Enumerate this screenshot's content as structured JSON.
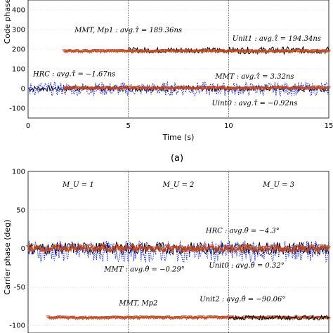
{
  "figure": {
    "subfigure_label": "(a)"
  },
  "chart_data": [
    {
      "type": "line",
      "xlabel": "Time (s)",
      "ylabel": "Code phase",
      "xlim": [
        0,
        15
      ],
      "ylim": [
        -150,
        450
      ],
      "xticks": [
        "0",
        "5",
        "10",
        "15"
      ],
      "yticks": [
        "-100",
        "0",
        "100",
        "200",
        "300",
        "400"
      ],
      "grid": true,
      "vlines": [
        5,
        10
      ],
      "annotations": [
        {
          "text": "MMT, Mp1 : avg.τ̂ = 189.36ns",
          "x": 5.0,
          "y": 285
        },
        {
          "text": "Unit1 : avg.τ̂ = 194.34ns",
          "x": 12.4,
          "y": 243
        },
        {
          "text": "HRC : avg.τ̂ = −1.67ns",
          "x": 2.3,
          "y": 63
        },
        {
          "text": "MMT : avg.τ̂ = 3.32ns",
          "x": 11.3,
          "y": 50
        },
        {
          "text": "Uint0 : avg.τ̂ = −0.92ns",
          "x": 11.3,
          "y": -85
        }
      ],
      "series": [
        {
          "color": "#000000",
          "style": "solid",
          "segments": [
            {
              "x_start": 0,
              "x_end": 5,
              "mean": 0,
              "noise": 15
            },
            {
              "x_start": 5,
              "x_end": 10,
              "mean": 0,
              "noise": 15
            },
            {
              "x_start": 10,
              "x_end": 15,
              "mean": 0,
              "noise": 15
            }
          ]
        },
        {
          "color": "#000000",
          "style": "solid",
          "segments": [
            {
              "x_start": 5,
              "x_end": 10,
              "mean": 195,
              "noise": 14
            },
            {
              "x_start": 10,
              "x_end": 15,
              "mean": 194,
              "noise": 18
            }
          ]
        },
        {
          "color": "#1f2fff",
          "style": "dotted",
          "segments": [
            {
              "x_start": 0,
              "x_end": 15,
              "mean": -2,
              "noise": 35
            }
          ]
        },
        {
          "color": "#c0461c",
          "style": "solid-markers",
          "segments": [
            {
              "x_start": 1.8,
              "x_end": 15,
              "mean": 190,
              "noise": 3
            },
            {
              "x_start": 1.8,
              "x_end": 15,
              "mean": 3,
              "noise": 5
            }
          ]
        }
      ]
    },
    {
      "type": "line",
      "xlabel": "",
      "ylabel": "Carrier phase (deg)",
      "xlim": [
        0,
        15
      ],
      "ylim": [
        -110,
        100
      ],
      "xticks": [],
      "yticks": [
        "-100",
        "-50",
        "0",
        "50",
        "100"
      ],
      "grid": true,
      "vlines": [
        5,
        10
      ],
      "regions": [
        "M_U = 1",
        "M_U = 2",
        "M_U = 3"
      ],
      "annotations": [
        {
          "text": "HRC : avg.θ̂ = −4.3°",
          "x": 10.7,
          "y": 20
        },
        {
          "text": "MMT : avg.θ̂ = −0.29°",
          "x": 5.8,
          "y": -30
        },
        {
          "text": "Unit0 : avg.θ̂ = 0.32°",
          "x": 10.9,
          "y": -25
        },
        {
          "text": "MMT, Mp2",
          "x": 5.5,
          "y": -74
        },
        {
          "text": "Unit2 : avg.θ̂ = −90.06°",
          "x": 10.7,
          "y": -69
        }
      ],
      "series": [
        {
          "color": "#000000",
          "style": "solid",
          "segments": [
            {
              "x_start": 0,
              "x_end": 15,
              "mean": 0,
              "noise": 8
            }
          ]
        },
        {
          "color": "#1f2fff",
          "style": "dotted",
          "segments": [
            {
              "x_start": 0,
              "x_end": 15,
              "mean": -4,
              "noise": 14
            }
          ]
        },
        {
          "color": "#c0461c",
          "style": "solid-markers",
          "segments": [
            {
              "x_start": 0,
              "x_end": 15,
              "mean": 0,
              "noise": 4
            },
            {
              "x_start": 1,
              "x_end": 15,
              "mean": -90,
              "noise": 1
            }
          ]
        },
        {
          "color": "#000000",
          "style": "solid",
          "segments": [
            {
              "x_start": 10,
              "x_end": 15,
              "mean": -90,
              "noise": 3
            }
          ]
        }
      ]
    }
  ]
}
